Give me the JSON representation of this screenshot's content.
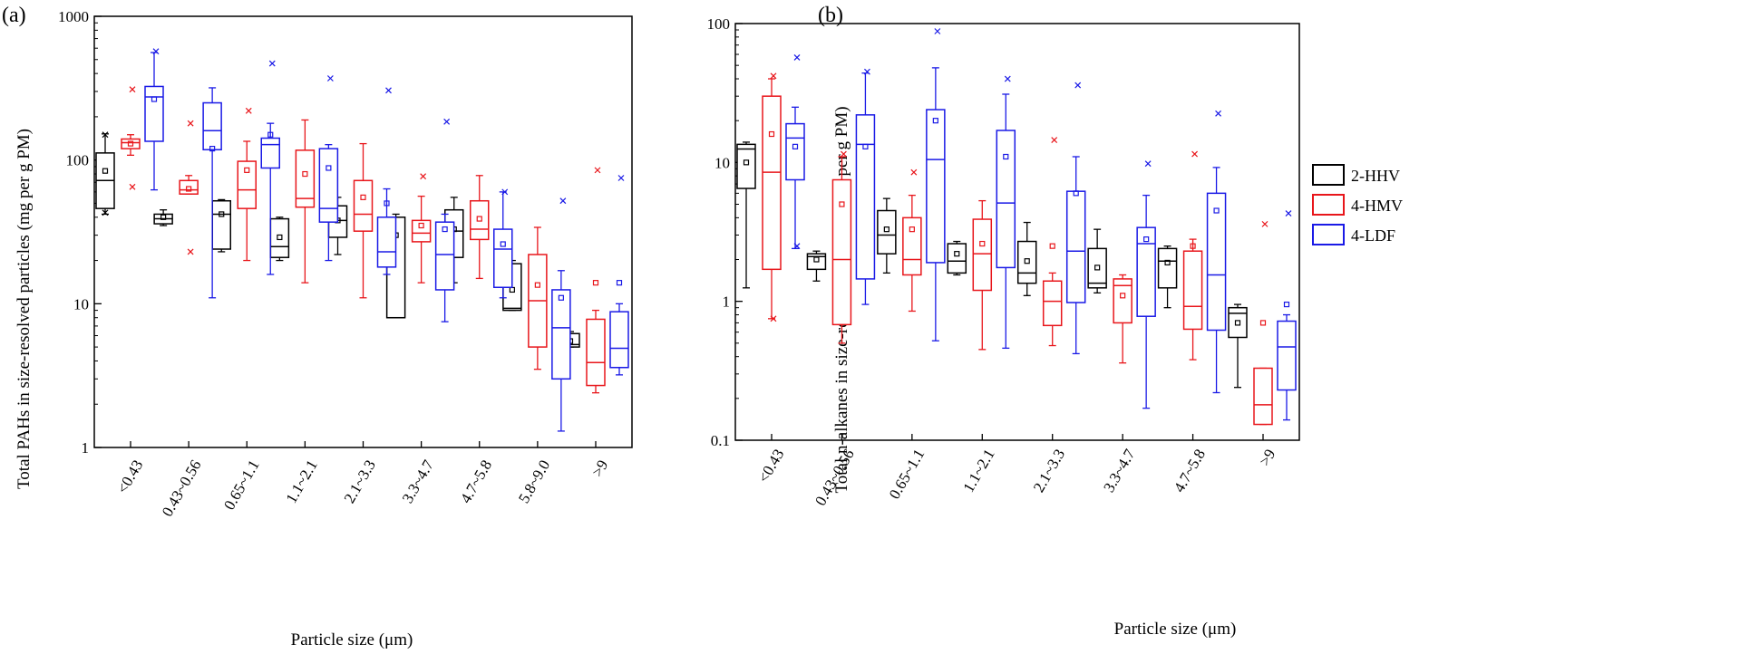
{
  "figure": {
    "legend": [
      {
        "name": "2-HHV",
        "color": "#000000"
      },
      {
        "name": "4-HMV",
        "color": "#e8161b"
      },
      {
        "name": "4-LDF",
        "color": "#1a1ae6"
      }
    ]
  },
  "chart_data": [
    {
      "type": "box",
      "panel_label": "(a)",
      "xlabel": "Particle size (μm)",
      "ylabel": "Total PAHs in size-resolved particles (mg per g PM)",
      "yscale": "log",
      "ylim": [
        1,
        1000
      ],
      "yticks": [
        1,
        10,
        100,
        1000
      ],
      "ytick_labels": [
        "1",
        "10",
        "100",
        "1000"
      ],
      "categories": [
        "<0.43",
        "0.43~0.56",
        "0.65~1.1",
        "1.1~2.1",
        "2.1~3.3",
        "3.3~4.7",
        "4.7~5.8",
        "5.8~9.0",
        ">9"
      ],
      "series": [
        {
          "name": "2-HHV",
          "color": "#000000",
          "boxes": [
            {
              "whisker_low": 42,
              "q1": 46,
              "median": 72,
              "q3": 112,
              "whisker_high": 152,
              "mean": 84,
              "outliers": [
                150,
                43
              ]
            },
            {
              "whisker_low": 35,
              "q1": 36,
              "median": 39,
              "q3": 42,
              "whisker_high": 45,
              "mean": 40,
              "outliers": []
            },
            {
              "whisker_low": 23,
              "q1": 24,
              "median": 42,
              "q3": 52,
              "whisker_high": 53,
              "mean": 42,
              "outliers": []
            },
            {
              "whisker_low": 20,
              "q1": 21,
              "median": 25,
              "q3": 39,
              "whisker_high": 40,
              "mean": 29,
              "outliers": []
            },
            {
              "whisker_low": 22,
              "q1": 29,
              "median": 38,
              "q3": 48,
              "whisker_high": 55,
              "mean": 38,
              "outliers": []
            },
            {
              "whisker_low": 8,
              "q1": 8,
              "median": 8,
              "q3": 40,
              "whisker_high": 42,
              "mean": 30,
              "outliers": []
            },
            {
              "whisker_low": 14,
              "q1": 21,
              "median": 32,
              "q3": 45,
              "whisker_high": 55,
              "mean": 33,
              "outliers": []
            },
            {
              "whisker_low": 9,
              "q1": 9,
              "median": 9.3,
              "q3": 19,
              "whisker_high": 20,
              "mean": 12.5,
              "outliers": []
            },
            {
              "whisker_low": 5,
              "q1": 5,
              "median": 5.2,
              "q3": 6.2,
              "whisker_high": 6.4,
              "mean": 5.5,
              "outliers": []
            }
          ]
        },
        {
          "name": "4-HMV",
          "color": "#e8161b",
          "boxes": [
            {
              "whisker_low": 108,
              "q1": 120,
              "median": 132,
              "q3": 140,
              "whisker_high": 150,
              "mean": 130,
              "outliers": [
                310,
                65
              ]
            },
            {
              "whisker_low": 58,
              "q1": 58,
              "median": 62,
              "q3": 72,
              "whisker_high": 78,
              "mean": 63,
              "outliers": [
                180,
                23
              ]
            },
            {
              "whisker_low": 20,
              "q1": 46,
              "median": 62,
              "q3": 98,
              "whisker_high": 135,
              "mean": 85,
              "outliers": [
                220
              ]
            },
            {
              "whisker_low": 14,
              "q1": 47,
              "median": 54,
              "q3": 117,
              "whisker_high": 190,
              "mean": 80,
              "outliers": []
            },
            {
              "whisker_low": 11,
              "q1": 32,
              "median": 42,
              "q3": 72,
              "whisker_high": 130,
              "mean": 55,
              "outliers": []
            },
            {
              "whisker_low": 14,
              "q1": 27,
              "median": 31,
              "q3": 38,
              "whisker_high": 56,
              "mean": 35,
              "outliers": [
                77
              ]
            },
            {
              "whisker_low": 15,
              "q1": 28,
              "median": 33,
              "q3": 52,
              "whisker_high": 78,
              "mean": 39,
              "outliers": []
            },
            {
              "whisker_low": 3.5,
              "q1": 5,
              "median": 10.5,
              "q3": 22,
              "whisker_high": 34,
              "mean": 13.5,
              "outliers": []
            },
            {
              "whisker_low": 2.4,
              "q1": 2.7,
              "median": 3.9,
              "q3": 7.8,
              "whisker_high": 9,
              "mean": 14,
              "outliers": [
                85
              ]
            }
          ]
        },
        {
          "name": "4-LDF",
          "color": "#1a1ae6",
          "boxes": [
            {
              "whisker_low": 62,
              "q1": 135,
              "median": 275,
              "q3": 325,
              "whisker_high": 560,
              "mean": 265,
              "outliers": [
                570
              ]
            },
            {
              "whisker_low": 11,
              "q1": 118,
              "median": 160,
              "q3": 250,
              "whisker_high": 318,
              "mean": 120,
              "outliers": []
            },
            {
              "whisker_low": 16,
              "q1": 88,
              "median": 128,
              "q3": 142,
              "whisker_high": 180,
              "mean": 150,
              "outliers": [
                470
              ]
            },
            {
              "whisker_low": 20,
              "q1": 37,
              "median": 46,
              "q3": 120,
              "whisker_high": 128,
              "mean": 88,
              "outliers": [
                370
              ]
            },
            {
              "whisker_low": 16,
              "q1": 18,
              "median": 23,
              "q3": 40,
              "whisker_high": 63,
              "mean": 50,
              "outliers": [
                305
              ]
            },
            {
              "whisker_low": 7.5,
              "q1": 12.5,
              "median": 22,
              "q3": 37,
              "whisker_high": 42,
              "mean": 33,
              "outliers": [
                185
              ]
            },
            {
              "whisker_low": 11,
              "q1": 13,
              "median": 24,
              "q3": 33,
              "whisker_high": 60,
              "mean": 26,
              "outliers": [
                60
              ]
            },
            {
              "whisker_low": 1.3,
              "q1": 3,
              "median": 6.8,
              "q3": 12.5,
              "whisker_high": 17,
              "mean": 11,
              "outliers": [
                52
              ]
            },
            {
              "whisker_low": 3.2,
              "q1": 3.6,
              "median": 4.9,
              "q3": 8.8,
              "whisker_high": 10,
              "mean": 14,
              "outliers": [
                75
              ]
            }
          ]
        }
      ]
    },
    {
      "type": "box",
      "panel_label": "(b)",
      "xlabel": "Particle size (μm)",
      "ylabel": "Total n-alkanes in size-resolved particles (mg per g PM)",
      "yscale": "log",
      "ylim": [
        0.1,
        100
      ],
      "yticks": [
        0.1,
        1,
        10,
        100
      ],
      "ytick_labels": [
        "0.1",
        "1",
        "10",
        "100"
      ],
      "categories": [
        "<0.43",
        "0.43~0.56",
        "0.65~1.1",
        "1.1~2.1",
        "2.1~3.3",
        "3.3~4.7",
        "4.7~5.8",
        ">9"
      ],
      "series": [
        {
          "name": "2-HHV",
          "color": "#000000",
          "boxes": [
            {
              "whisker_low": 1.25,
              "q1": 6.5,
              "median": 12.5,
              "q3": 13.5,
              "whisker_high": 14,
              "mean": 10,
              "outliers": []
            },
            {
              "whisker_low": 1.4,
              "q1": 1.7,
              "median": 2.1,
              "q3": 2.2,
              "whisker_high": 2.3,
              "mean": 2.0,
              "outliers": []
            },
            {
              "whisker_low": 1.6,
              "q1": 2.2,
              "median": 3.0,
              "q3": 4.5,
              "whisker_high": 5.5,
              "mean": 3.3,
              "outliers": []
            },
            {
              "whisker_low": 1.55,
              "q1": 1.6,
              "median": 1.95,
              "q3": 2.6,
              "whisker_high": 2.7,
              "mean": 2.2,
              "outliers": []
            },
            {
              "whisker_low": 1.1,
              "q1": 1.35,
              "median": 1.6,
              "q3": 2.7,
              "whisker_high": 3.7,
              "mean": 1.95,
              "outliers": []
            },
            {
              "whisker_low": 1.15,
              "q1": 1.25,
              "median": 1.35,
              "q3": 2.4,
              "whisker_high": 3.3,
              "mean": 1.75,
              "outliers": []
            },
            {
              "whisker_low": 0.9,
              "q1": 1.25,
              "median": 1.95,
              "q3": 2.4,
              "whisker_high": 2.5,
              "mean": 1.9,
              "outliers": []
            },
            {
              "whisker_low": 0.24,
              "q1": 0.55,
              "median": 0.82,
              "q3": 0.9,
              "whisker_high": 0.95,
              "mean": 0.7,
              "outliers": []
            }
          ]
        },
        {
          "name": "4-HMV",
          "color": "#e8161b",
          "boxes": [
            {
              "whisker_low": 0.75,
              "q1": 1.7,
              "median": 8.5,
              "q3": 30,
              "whisker_high": 40,
              "mean": 16,
              "outliers": [
                42,
                0.75
              ]
            },
            {
              "whisker_low": 0.5,
              "q1": 0.68,
              "median": 2.0,
              "q3": 7.5,
              "whisker_high": 11,
              "mean": 5,
              "outliers": [
                11.5
              ]
            },
            {
              "whisker_low": 0.85,
              "q1": 1.55,
              "median": 2.0,
              "q3": 4.0,
              "whisker_high": 5.8,
              "mean": 3.3,
              "outliers": [
                8.5
              ]
            },
            {
              "whisker_low": 0.45,
              "q1": 1.2,
              "median": 2.2,
              "q3": 3.9,
              "whisker_high": 5.3,
              "mean": 2.6,
              "outliers": []
            },
            {
              "whisker_low": 0.48,
              "q1": 0.67,
              "median": 1.0,
              "q3": 1.4,
              "whisker_high": 1.6,
              "mean": 2.5,
              "outliers": [
                14.5
              ]
            },
            {
              "whisker_low": 0.36,
              "q1": 0.7,
              "median": 1.3,
              "q3": 1.45,
              "whisker_high": 1.55,
              "mean": 1.1,
              "outliers": []
            },
            {
              "whisker_low": 0.38,
              "q1": 0.63,
              "median": 0.92,
              "q3": 2.3,
              "whisker_high": 2.8,
              "mean": 2.5,
              "outliers": [
                11.5
              ]
            },
            {
              "whisker_low": 0.13,
              "q1": 0.13,
              "median": 0.18,
              "q3": 0.33,
              "whisker_high": 0.33,
              "mean": 0.7,
              "outliers": [
                3.6
              ]
            }
          ]
        },
        {
          "name": "4-LDF",
          "color": "#1a1ae6",
          "boxes": [
            {
              "whisker_low": 2.4,
              "q1": 7.5,
              "median": 15,
              "q3": 19,
              "whisker_high": 25,
              "mean": 13,
              "outliers": [
                57,
                2.5
              ]
            },
            {
              "whisker_low": 0.95,
              "q1": 1.45,
              "median": 13.5,
              "q3": 22,
              "whisker_high": 44,
              "mean": 13,
              "outliers": [
                45
              ]
            },
            {
              "whisker_low": 0.52,
              "q1": 1.9,
              "median": 10.5,
              "q3": 24,
              "whisker_high": 48,
              "mean": 20,
              "outliers": [
                88
              ]
            },
            {
              "whisker_low": 0.46,
              "q1": 1.75,
              "median": 5.1,
              "q3": 17,
              "whisker_high": 31,
              "mean": 11,
              "outliers": [
                40
              ]
            },
            {
              "whisker_low": 0.42,
              "q1": 0.98,
              "median": 2.3,
              "q3": 6.2,
              "whisker_high": 11,
              "mean": 6,
              "outliers": [
                36
              ]
            },
            {
              "whisker_low": 0.17,
              "q1": 0.78,
              "median": 2.6,
              "q3": 3.4,
              "whisker_high": 5.8,
              "mean": 2.8,
              "outliers": [
                9.8
              ]
            },
            {
              "whisker_low": 0.22,
              "q1": 0.62,
              "median": 1.55,
              "q3": 6.0,
              "whisker_high": 9.2,
              "mean": 4.5,
              "outliers": [
                22.5
              ]
            },
            {
              "whisker_low": 0.14,
              "q1": 0.23,
              "median": 0.47,
              "q3": 0.72,
              "whisker_high": 0.8,
              "mean": 0.95,
              "outliers": [
                4.3
              ]
            }
          ]
        }
      ]
    }
  ]
}
